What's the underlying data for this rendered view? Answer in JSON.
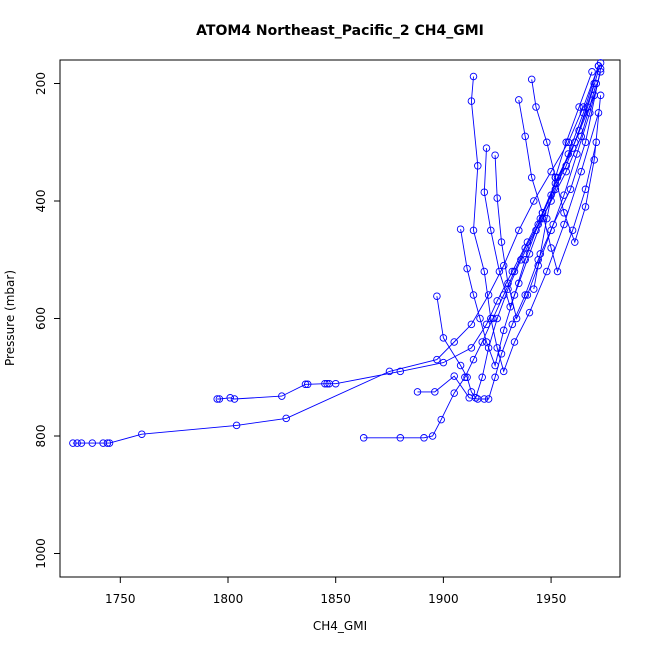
{
  "chart_data": {
    "type": "line",
    "title": "ATOM4 Northeast_Pacific_2 CH4_GMI",
    "xlabel": "CH4_GMI",
    "ylabel": "Pressure (mbar)",
    "xlim": [
      1722,
      1982
    ],
    "ylim": [
      1040,
      160
    ],
    "y_reversed": true,
    "x_ticks": [
      1750,
      1800,
      1850,
      1900,
      1950
    ],
    "y_ticks": [
      200,
      400,
      600,
      800,
      1000
    ],
    "grid": false,
    "series_color": "#0000ff",
    "marker": "open-circle",
    "series": [
      {
        "x": [
          1728,
          1730,
          1732,
          1737,
          1742,
          1744,
          1745,
          1760,
          1804,
          1827,
          1875,
          1897,
          1905,
          1913,
          1921,
          1928,
          1935,
          1942,
          1950,
          1958,
          1965,
          1972
        ],
        "y": [
          812,
          812,
          812,
          812,
          812,
          812,
          812,
          797,
          782,
          770,
          690,
          670,
          640,
          610,
          560,
          510,
          450,
          400,
          350,
          300,
          240,
          170
        ]
      },
      {
        "x": [
          1795,
          1796,
          1801,
          1803,
          1825,
          1836,
          1837,
          1845,
          1846,
          1847,
          1850,
          1880,
          1900,
          1913,
          1920,
          1925,
          1932,
          1939,
          1946,
          1953,
          1961,
          1970
        ],
        "y": [
          737,
          737,
          735,
          737,
          732,
          712,
          712,
          711,
          711,
          711,
          711,
          690,
          675,
          650,
          610,
          570,
          520,
          470,
          420,
          360,
          300,
          220
        ]
      },
      {
        "x": [
          1863,
          1880,
          1891,
          1895,
          1899,
          1905,
          1910,
          1914,
          1918,
          1923,
          1928,
          1933,
          1938,
          1944,
          1950,
          1957,
          1963,
          1970
        ],
        "y": [
          803,
          803,
          803,
          800,
          772,
          727,
          700,
          670,
          640,
          600,
          560,
          520,
          480,
          440,
          390,
          340,
          280,
          200
        ]
      },
      {
        "x": [
          1888,
          1896,
          1905,
          1912,
          1916,
          1919,
          1921,
          1924,
          1927,
          1932,
          1938,
          1944,
          1951,
          1959,
          1966,
          1973
        ],
        "y": [
          725,
          725,
          698,
          735,
          737,
          737,
          737,
          700,
          660,
          610,
          560,
          500,
          440,
          380,
          300,
          175
        ]
      },
      {
        "x": [
          1897,
          1900,
          1908,
          1911,
          1913,
          1915,
          1918,
          1921,
          1925,
          1930,
          1936,
          1943,
          1950,
          1957,
          1964,
          1971
        ],
        "y": [
          562,
          633,
          680,
          700,
          725,
          735,
          700,
          650,
          600,
          550,
          500,
          450,
          400,
          350,
          290,
          200
        ]
      },
      {
        "x": [
          1914,
          1913,
          1916,
          1914,
          1919,
          1922,
          1925,
          1928,
          1933,
          1940,
          1948,
          1956,
          1964,
          1972
        ],
        "y": [
          188,
          230,
          340,
          450,
          520,
          600,
          650,
          690,
          640,
          590,
          520,
          440,
          350,
          250
        ]
      },
      {
        "x": [
          1908,
          1911,
          1914,
          1917,
          1920,
          1924,
          1928,
          1933,
          1938,
          1945,
          1952,
          1960,
          1967,
          1973
        ],
        "y": [
          448,
          515,
          560,
          600,
          640,
          680,
          620,
          560,
          500,
          430,
          370,
          310,
          240,
          165
        ]
      },
      {
        "x": [
          1920,
          1919,
          1922,
          1926,
          1931,
          1935,
          1940,
          1946,
          1952,
          1958,
          1965,
          1972
        ],
        "y": [
          310,
          385,
          450,
          520,
          580,
          540,
          490,
          430,
          380,
          320,
          250,
          170
        ]
      },
      {
        "x": [
          1924,
          1925,
          1927,
          1930,
          1934,
          1939,
          1944,
          1950,
          1956,
          1962,
          1968,
          1973
        ],
        "y": [
          322,
          395,
          470,
          540,
          600,
          560,
          510,
          450,
          390,
          320,
          250,
          180
        ]
      },
      {
        "x": [
          1935,
          1938,
          1941,
          1946,
          1950,
          1953,
          1960,
          1966,
          1971
        ],
        "y": [
          228,
          290,
          360,
          420,
          480,
          520,
          450,
          380,
          300
        ]
      },
      {
        "x": [
          1941,
          1943,
          1948,
          1952,
          1956,
          1961,
          1966,
          1970,
          1973
        ],
        "y": [
          193,
          240,
          300,
          360,
          420,
          470,
          410,
          330,
          220
        ]
      },
      {
        "x": [
          1942,
          1945,
          1948,
          1952,
          1957,
          1963,
          1969
        ],
        "y": [
          550,
          490,
          430,
          360,
          300,
          240,
          180
        ]
      }
    ]
  }
}
